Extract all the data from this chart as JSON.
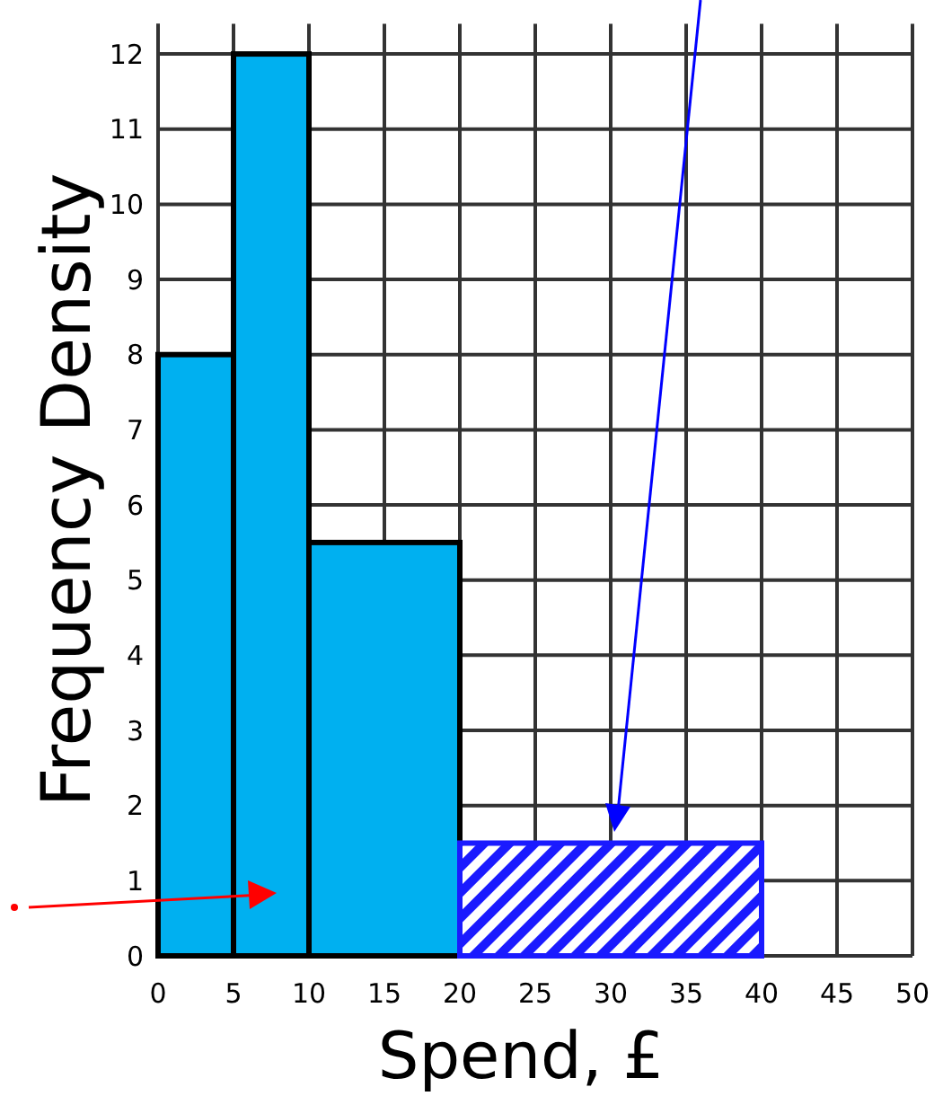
{
  "chart_data": {
    "type": "histogram",
    "xlabel": "Spend, £",
    "ylabel": "Frequency Density",
    "bins": [
      0,
      5,
      10,
      20,
      40
    ],
    "values": [
      8,
      12,
      5.5,
      1.5
    ],
    "colors": [
      "#00b0f0",
      "#00b0f0",
      "#00b0f0",
      "#1a1aff"
    ],
    "xlim": [
      0,
      50
    ],
    "ylim": [
      0,
      12.4
    ],
    "xticks": [
      0,
      5,
      10,
      15,
      20,
      25,
      30,
      35,
      40,
      45,
      50
    ],
    "yticks": [
      0,
      1,
      2,
      3,
      4,
      5,
      6,
      7,
      8,
      9,
      10,
      11,
      12
    ],
    "grid": true
  }
}
